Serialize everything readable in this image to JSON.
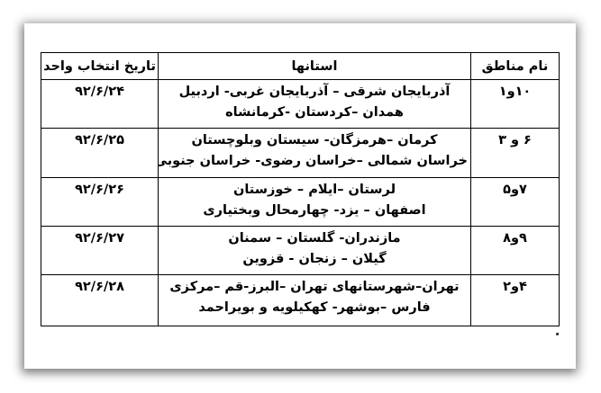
{
  "page": {
    "background_color": "#ffffff",
    "text_color": "#000000",
    "table_border_color": "#000000",
    "shadow_color": "#8f8f8f"
  },
  "table": {
    "direction": "rtl",
    "headers": {
      "regions": "نام مناطق",
      "provinces": "استانها",
      "date": "تاریخ انتخاب واحد"
    },
    "rows": [
      {
        "regions": "۱۰و۱",
        "provinces_line1": "آذربایجان شرقی – آذربایجان غربی- اردبیل",
        "provinces_line2": "همدان –کردستان -کرمانشاه",
        "date": "۹۲/۶/۲۴"
      },
      {
        "regions": "۶ و ۳",
        "provinces_line1": "کرمان –هرمزگان- سیستان وبلوچستان",
        "provinces_line2": "خراسان شمالی –خراسان رضوی- خراسان جنوبی",
        "date": "۹۲/۶/۲۵"
      },
      {
        "regions": "۷و۵",
        "provinces_line1": "لرستان –ایلام – خوزستان",
        "provinces_line2": "اصفهان – یزد- چهارمحال وبختیاری",
        "date": "۹۲/۶/۲۶"
      },
      {
        "regions": "۹و۸",
        "provinces_line1": "مازندران- گلستان – سمنان",
        "provinces_line2": "گیلان – زنجان - قزوین",
        "date": "۹۲/۶/۲۷"
      },
      {
        "regions": "۴و۲",
        "provinces_line1": "تهران–شهرستانهای تهران –البرز-قم –مرکزی",
        "provinces_line2": "فارس –بوشهر- کهکیلویه و بویراحمد",
        "date": "۹۲/۶/۲۸"
      }
    ]
  }
}
